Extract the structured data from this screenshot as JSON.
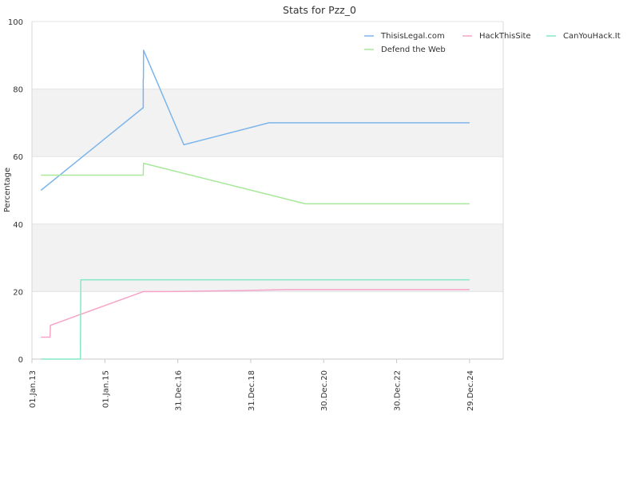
{
  "chart_data": {
    "type": "line",
    "title": "Stats for Pzz_0",
    "xlabel": "",
    "ylabel": "Percentage",
    "ylim": [
      0,
      100
    ],
    "yticks": [
      0,
      20,
      40,
      60,
      80,
      100
    ],
    "xlim": [
      "2013-01-01",
      "2025-12-01"
    ],
    "xticks": [
      {
        "date": "2013-01-01",
        "label": "01.Jan.13"
      },
      {
        "date": "2015-01-01",
        "label": "01.Jan.15"
      },
      {
        "date": "2016-12-31",
        "label": "31.Dec.16"
      },
      {
        "date": "2018-12-31",
        "label": "31.Dec.18"
      },
      {
        "date": "2020-12-30",
        "label": "30.Dec.20"
      },
      {
        "date": "2022-12-30",
        "label": "30.Dec.22"
      },
      {
        "date": "2024-12-29",
        "label": "29.Dec.24"
      }
    ],
    "grid": true,
    "banded_background": true,
    "legend_position": "top-right",
    "series": [
      {
        "name": "ThisisLegal.com",
        "color": "#7cb5ec",
        "points": [
          [
            "2013-04-01",
            50
          ],
          [
            "2016-01-20",
            74.5
          ],
          [
            "2016-01-20",
            83
          ],
          [
            "2016-01-22",
            83
          ],
          [
            "2016-01-23",
            91.5
          ],
          [
            "2017-03-01",
            63.5
          ],
          [
            "2019-07-01",
            70
          ],
          [
            "2024-12-29",
            70
          ]
        ]
      },
      {
        "name": "HackThisSite",
        "color": "#f7a3c7",
        "points": [
          [
            "2013-04-01",
            6.5
          ],
          [
            "2013-07-01",
            6.5
          ],
          [
            "2013-07-05",
            10
          ],
          [
            "2016-01-20",
            20
          ],
          [
            "2016-10-01",
            20
          ],
          [
            "2018-10-01",
            20.3
          ],
          [
            "2020-01-01",
            20.6
          ],
          [
            "2024-12-29",
            20.6
          ]
        ]
      },
      {
        "name": "CanYouHack.It",
        "color": "#85e8c5",
        "points": [
          [
            "2013-04-01",
            0
          ],
          [
            "2014-05-01",
            0
          ],
          [
            "2014-05-05",
            23.5
          ],
          [
            "2024-12-29",
            23.5
          ]
        ]
      },
      {
        "name": "Defend the Web",
        "color": "#a7e89a",
        "points": [
          [
            "2013-04-01",
            54.5
          ],
          [
            "2016-01-20",
            54.5
          ],
          [
            "2016-01-23",
            58
          ],
          [
            "2020-07-01",
            46
          ],
          [
            "2024-12-29",
            46
          ]
        ]
      }
    ]
  }
}
